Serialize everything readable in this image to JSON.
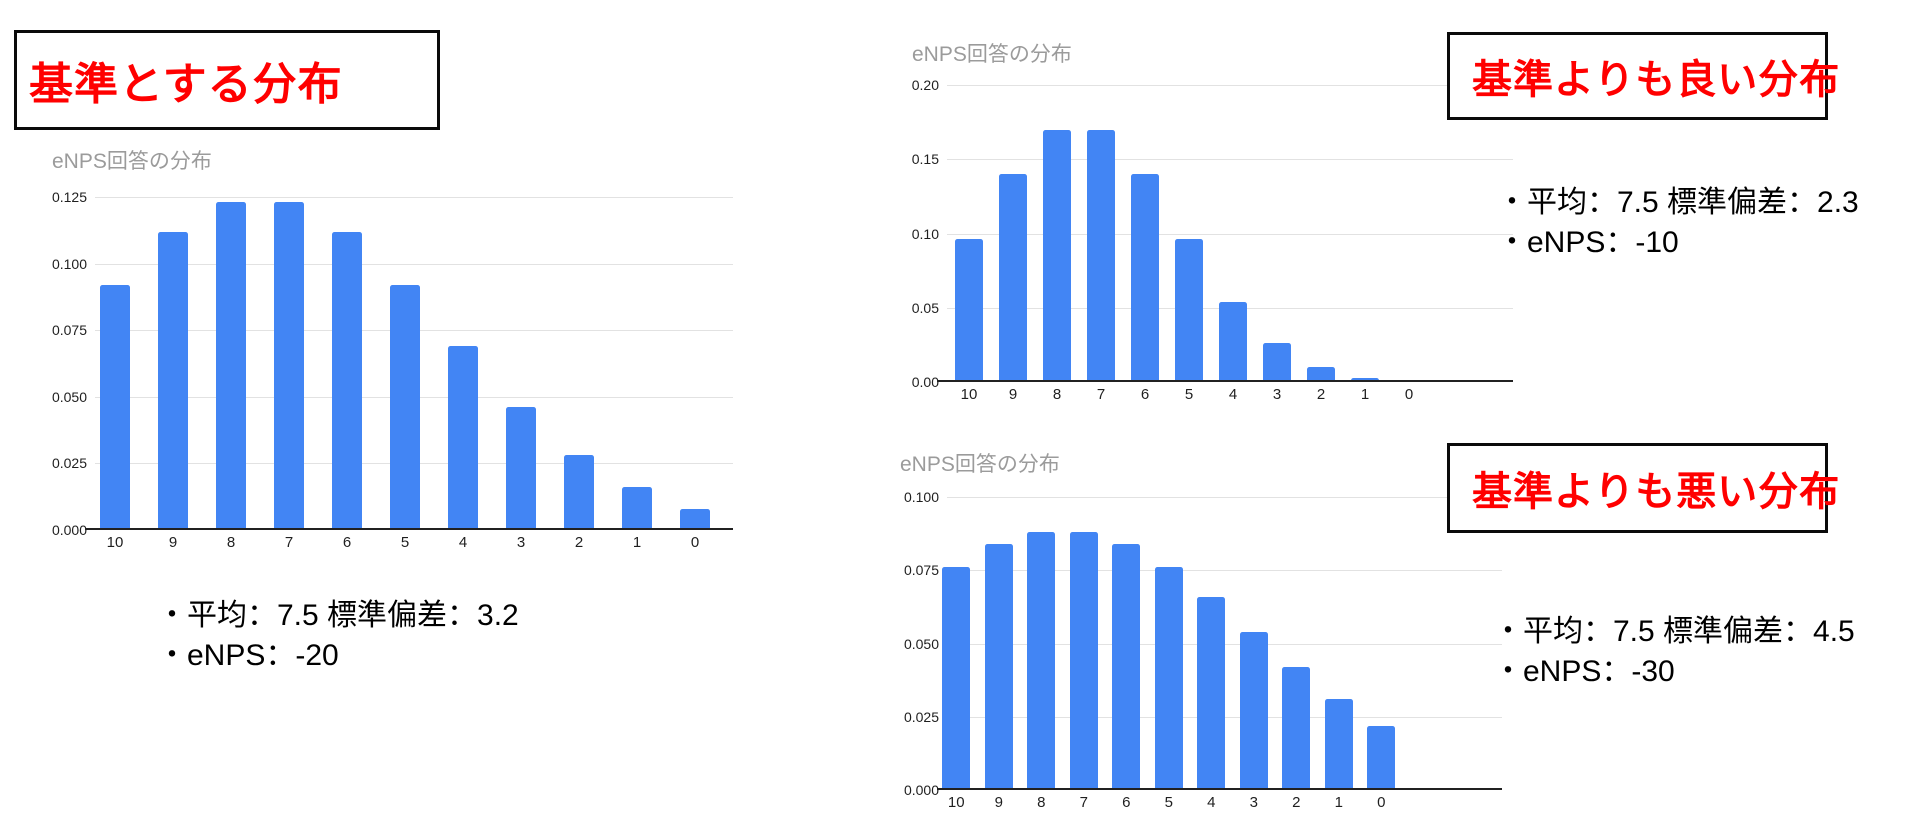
{
  "labels": {
    "reference": "基準とする分布",
    "better": "基準よりも良い分布",
    "worse": "基準よりも悪い分布"
  },
  "annotations": {
    "reference": {
      "line1": "・平均：7.5 標準偏差：3.2",
      "line2": "・eNPS：-20"
    },
    "better": {
      "line1": "・平均：7.5 標準偏差：2.3",
      "line2": "・eNPS：-10"
    },
    "worse": {
      "line1": "・平均：7.5 標準偏差：4.5",
      "line2": "・eNPS：-30"
    }
  },
  "colors": {
    "bar": "#4285f4",
    "red_label": "#ff0000",
    "gridline": "#e2e2e2",
    "axis": "#212121",
    "chart_title": "#9b9b9b"
  },
  "chart_data": [
    {
      "type": "bar",
      "title": "eNPS回答の分布",
      "categories": [
        "10",
        "9",
        "8",
        "7",
        "6",
        "5",
        "4",
        "3",
        "2",
        "1",
        "0"
      ],
      "values": [
        0.092,
        0.112,
        0.123,
        0.123,
        0.112,
        0.092,
        0.069,
        0.046,
        0.028,
        0.016,
        0.008
      ],
      "yticks": [
        "0.125",
        "0.100",
        "0.075",
        "0.050",
        "0.025",
        "0.000"
      ],
      "ylim": [
        0,
        0.125
      ],
      "xlabel": "",
      "ylabel": "",
      "grid": true,
      "legend": "none",
      "stats": {
        "mean": 7.5,
        "std": 3.2,
        "enps": -20
      }
    },
    {
      "type": "bar",
      "title": "eNPS回答の分布",
      "categories": [
        "10",
        "9",
        "8",
        "7",
        "6",
        "5",
        "4",
        "3",
        "2",
        "1",
        "0"
      ],
      "values": [
        0.096,
        0.14,
        0.17,
        0.17,
        0.14,
        0.096,
        0.054,
        0.026,
        0.01,
        0.003,
        0.001
      ],
      "yticks": [
        "0.20",
        "0.15",
        "0.10",
        "0.05",
        "0.00"
      ],
      "ylim": [
        0,
        0.2
      ],
      "xlabel": "",
      "ylabel": "",
      "grid": true,
      "legend": "none",
      "stats": {
        "mean": 7.5,
        "std": 2.3,
        "enps": -10
      }
    },
    {
      "type": "bar",
      "title": "eNPS回答の分布",
      "categories": [
        "10",
        "9",
        "8",
        "7",
        "6",
        "5",
        "4",
        "3",
        "2",
        "1",
        "0"
      ],
      "values": [
        0.076,
        0.084,
        0.088,
        0.088,
        0.084,
        0.076,
        0.066,
        0.054,
        0.042,
        0.031,
        0.022
      ],
      "yticks": [
        "0.100",
        "0.075",
        "0.050",
        "0.025",
        "0.000"
      ],
      "ylim": [
        0,
        0.1
      ],
      "xlabel": "",
      "ylabel": "",
      "grid": true,
      "legend": "none",
      "stats": {
        "mean": 7.5,
        "std": 4.5,
        "enps": -30
      }
    }
  ]
}
